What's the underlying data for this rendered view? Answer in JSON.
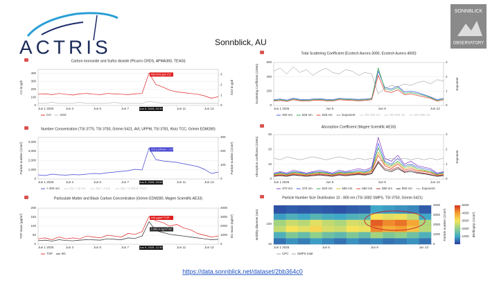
{
  "header": {
    "logo_text": "ACTRIS",
    "title": "Sonnblick, AU",
    "observatory_top": "SONNBLICK",
    "observatory_bottom": "OBSERVATORY"
  },
  "footer": {
    "link": "https://data.sonnblick.net/dataset/2bb364c0"
  },
  "chart_data": [
    {
      "type": "line",
      "title": "Carbon monoxide and Sulfur dioxide (Picarro CRDS, APMA360, TEI43i)",
      "y_label": "CO in ppb",
      "y2_label": "SO2 in ppb",
      "x": [
        1,
        1.5,
        2,
        2.5,
        3,
        3.5,
        4,
        4.5,
        5,
        5.5,
        6,
        6.5,
        7,
        7.5,
        8,
        8.5,
        9,
        9.5,
        10,
        10.5,
        11,
        11.5,
        12,
        12.5,
        13,
        13.5,
        14
      ],
      "xlim": [
        1,
        14
      ],
      "xticks": [
        {
          "value": 1,
          "label": "Jun 1 2025"
        },
        {
          "value": 3,
          "label": "Jun 3"
        },
        {
          "value": 5,
          "label": "Jun 5"
        },
        {
          "value": 7,
          "label": "Jun 7"
        },
        {
          "value": 11,
          "label": "Jun 11"
        },
        {
          "value": 13,
          "label": "Jun 13"
        }
      ],
      "ylim": [
        0,
        450
      ],
      "yticks": [
        0,
        100,
        200,
        300,
        400
      ],
      "y2lim": [
        0,
        3.5
      ],
      "y2ticks": [
        0,
        1,
        2,
        3
      ],
      "grid": true,
      "series": [
        {
          "name": "CO",
          "color": "#e02020",
          "values": [
            140,
            145,
            135,
            150,
            140,
            130,
            145,
            150,
            140,
            135,
            150,
            145,
            140,
            135,
            145,
            150,
            403,
            260,
            230,
            190,
            170,
            160,
            150,
            140,
            120,
            90,
            110
          ]
        },
        {
          "name": "SO2",
          "color": "#bbbbbb",
          "axis": "y2",
          "values": [
            0.2,
            0.2,
            0.3,
            0.2,
            0.2,
            0.2,
            0.3,
            0.2,
            0.2,
            0.2,
            0.2,
            0.3,
            0.2,
            0.2,
            0.2,
            0.2,
            0.4,
            0.3,
            0.2,
            0.2,
            0.2,
            0.2,
            0.2,
            0.2,
            0.2,
            0.2,
            0.2
          ]
        }
      ],
      "annotations": [
        "403.003 ppb CO"
      ],
      "hover_label": "Jun 9, 2025, 02:30"
    },
    {
      "type": "line",
      "title": "Number Concentration (TSI 3775, TSI 3750, Grimm 5421, AVL UFPM, TSI 3781, Kloiz TCC, Grimm EDM280)",
      "y_label": "Particle number (1/cm³)",
      "y2_label": "Particle number (1/cm³)",
      "x": [
        1,
        1.5,
        2,
        2.5,
        3,
        3.5,
        4,
        4.5,
        5,
        5.5,
        6,
        6.5,
        7,
        7.5,
        8,
        8.5,
        9,
        9.5,
        10,
        10.5,
        11,
        11.5,
        12,
        12.5,
        13,
        13.5,
        14
      ],
      "xlim": [
        1,
        14
      ],
      "xticks": [
        {
          "value": 1,
          "label": "Jun 1 2025"
        },
        {
          "value": 3,
          "label": "Jun 3"
        },
        {
          "value": 5,
          "label": "Jun 5"
        },
        {
          "value": 7,
          "label": "Jun 7"
        },
        {
          "value": 11,
          "label": "Jun 11"
        },
        {
          "value": 13,
          "label": "Jun 13"
        }
      ],
      "ylim": [
        0,
        4500
      ],
      "yticks": [
        0,
        {
          "value": 1000,
          "label": "1,000"
        },
        {
          "value": 2000,
          "label": "2,000"
        },
        {
          "value": 3000,
          "label": "3,000"
        },
        {
          "value": 4000,
          "label": "4,000"
        }
      ],
      "y2lim": [
        0,
        300
      ],
      "y2ticks": [
        0,
        100,
        200,
        300
      ],
      "grid": true,
      "series": [
        {
          "name": "> 300 nm",
          "color": "#4040d0",
          "axis": "y2",
          "values": [
            30,
            25,
            35,
            30,
            28,
            32,
            30,
            35,
            40,
            38,
            45,
            50,
            55,
            60,
            70,
            65,
            223,
            140,
            130,
            125,
            120,
            110,
            100,
            90,
            70,
            40,
            50
          ]
        }
      ],
      "legend_hidden": [
        "Dp > 10 nm",
        "Dp > 4 nm",
        "Dp > 4 (Kloiz TCC)"
      ],
      "annotations": [
        "223 particles / cm³ > 300 nm"
      ],
      "hover_label": "Jun 9, 2025, 03:00"
    },
    {
      "type": "line",
      "title": "Particulate Matter and Black Carbon Concentration (Grimm EDM280, Magee Scientific AE33)",
      "y_label": "TSP mass (µg/m³)",
      "y2_label": "BC mass (ng/m³)",
      "x": [
        1,
        1.5,
        2,
        2.5,
        3,
        3.5,
        4,
        4.5,
        5,
        5.5,
        6,
        6.5,
        7,
        7.5,
        8,
        8.5,
        9,
        9.5,
        10,
        10.5,
        11,
        11.5,
        12,
        12.5,
        13,
        13.5,
        14
      ],
      "xlim": [
        1,
        14
      ],
      "xticks": [
        {
          "value": 1,
          "label": "Jun 1 2025"
        },
        {
          "value": 3,
          "label": "Jun 3"
        },
        {
          "value": 5,
          "label": "Jun 5"
        },
        {
          "value": 7,
          "label": "Jun 7"
        },
        {
          "value": 11,
          "label": "Jun 11"
        },
        {
          "value": 13,
          "label": "Jun 13"
        }
      ],
      "ylim": [
        0,
        200
      ],
      "yticks": [
        0,
        50,
        100,
        150,
        200
      ],
      "y2lim": [
        0,
        4000
      ],
      "y2ticks": [
        0,
        1000,
        2000,
        3000,
        4000
      ],
      "grid": true,
      "series": [
        {
          "name": "TSP",
          "color": "#e02020",
          "values": [
            30,
            35,
            25,
            40,
            30,
            35,
            30,
            45,
            40,
            35,
            50,
            45,
            40,
            60,
            55,
            70,
            154,
            130,
            120,
            100,
            110,
            90,
            80,
            60,
            50,
            40,
            45
          ]
        },
        {
          "name": "BC",
          "color": "#222222",
          "axis": "y2",
          "values": [
            400,
            450,
            350,
            500,
            420,
            380,
            450,
            500,
            480,
            450,
            600,
            550,
            500,
            700,
            650,
            900,
            2499.3,
            1500,
            1300,
            1100,
            1000,
            900,
            800,
            700,
            600,
            500,
            550
          ]
        }
      ],
      "annotations": [
        "154 µg/m³ TSP",
        "2,499.3 ng/m³ BC"
      ],
      "hover_label": "Jun 9, 2025, 12:30"
    },
    {
      "type": "line",
      "title": "Total Scattering Coefficient (Ecotech Aurora 3000, Ecotech Aurora 4000)",
      "y_label": "Scattering Coefficient (1/Mm)",
      "y2_label": "Exponent",
      "x": [
        1,
        1.5,
        2,
        2.5,
        3,
        3.5,
        4,
        4.5,
        5,
        5.5,
        6,
        6.5,
        7,
        7.5,
        8,
        8.5,
        9,
        9.5,
        10,
        10.5,
        11,
        11.5,
        12,
        12.5,
        13,
        13.5,
        14
      ],
      "xlim": [
        1,
        14
      ],
      "xticks": [
        {
          "value": 1,
          "label": "Jun 1 2025"
        },
        {
          "value": 5,
          "label": "Jun 5"
        },
        {
          "value": 9,
          "label": "Jun 9"
        },
        {
          "value": 13,
          "label": "Jun 13"
        }
      ],
      "ylim": [
        0,
        600
      ],
      "yticks": [
        0,
        200,
        400,
        600
      ],
      "y2lim": [
        0,
        3
      ],
      "y2ticks": [
        0,
        1,
        2,
        3
      ],
      "grid": true,
      "series": [
        {
          "name": "450 nm",
          "color": "#3050e0",
          "values": [
            80,
            90,
            75,
            100,
            85,
            80,
            90,
            95,
            85,
            80,
            100,
            95,
            90,
            85,
            90,
            100,
            480,
            250,
            230,
            270,
            190,
            200,
            180,
            150,
            120,
            80,
            100
          ]
        },
        {
          "name": "525 nm",
          "color": "#20a040",
          "values": [
            70,
            80,
            65,
            90,
            75,
            70,
            80,
            85,
            75,
            70,
            90,
            85,
            80,
            75,
            80,
            90,
            520,
            230,
            210,
            250,
            170,
            180,
            160,
            140,
            110,
            70,
            90
          ]
        },
        {
          "name": "635 nm",
          "color": "#e03020",
          "values": [
            60,
            70,
            55,
            80,
            65,
            60,
            70,
            75,
            65,
            60,
            80,
            75,
            70,
            65,
            70,
            80,
            420,
            200,
            180,
            220,
            150,
            160,
            140,
            120,
            100,
            60,
            80
          ]
        },
        {
          "name": "Exponent",
          "color": "#888888",
          "axis": "y2",
          "values": [
            2.4,
            2.6,
            2.2,
            2.7,
            2.3,
            2.5,
            2.1,
            2.4,
            2.6,
            2.3,
            2.2,
            2.5,
            2.4,
            2.1,
            2.3,
            2.2,
            0.8,
            1.2,
            1.4,
            1.3,
            1.5,
            1.4,
            1.6,
            1.7,
            1.5,
            1.8,
            1.7
          ]
        }
      ],
      "legend_hidden": [
        "BS 450 nm",
        "BS 525 nm",
        "BS 635 nm"
      ]
    },
    {
      "type": "line",
      "title": "Absorption Coefficient (Magee Scientific AE33)",
      "y_label": "Absorption coefficient (1/Mm)",
      "y2_label": "Exponent",
      "x": [
        1,
        1.5,
        2,
        2.5,
        3,
        3.5,
        4,
        4.5,
        5,
        5.5,
        6,
        6.5,
        7,
        7.5,
        8,
        8.5,
        9,
        9.5,
        10,
        10.5,
        11,
        11.5,
        12,
        12.5,
        13,
        13.5,
        14
      ],
      "xlim": [
        1,
        14
      ],
      "xticks": [
        {
          "value": 1,
          "label": "Jun 1 2025"
        },
        {
          "value": 5,
          "label": "Jun 5"
        },
        {
          "value": 9,
          "label": "Jun 9"
        },
        {
          "value": 13,
          "label": "Jun 13"
        }
      ],
      "ylim": [
        0,
        30
      ],
      "yticks": [
        0,
        10,
        20,
        30
      ],
      "y2lim": [
        0,
        3
      ],
      "y2ticks": [
        0,
        1,
        2,
        3
      ],
      "grid": true,
      "series": [
        {
          "name": "370 nm",
          "color": "#7b2fbf",
          "values": [
            4,
            5,
            4,
            6,
            5,
            4,
            5,
            6,
            5,
            4,
            6,
            5,
            6,
            7,
            6,
            8,
            28,
            14,
            12,
            16,
            10,
            12,
            9,
            8,
            7,
            4,
            5
          ]
        },
        {
          "name": "470 nm",
          "color": "#3050e0",
          "values": [
            3.5,
            4.5,
            3.5,
            5,
            4.5,
            3.5,
            4.5,
            5,
            4.5,
            3.5,
            5,
            4.5,
            5,
            6,
            5,
            7,
            24,
            12,
            10,
            14,
            9,
            10,
            8,
            7,
            6,
            3.5,
            4.5
          ]
        },
        {
          "name": "520 nm",
          "color": "#20a040",
          "values": [
            3,
            4,
            3,
            4.5,
            4,
            3,
            4,
            4.5,
            4,
            3,
            4.5,
            4,
            4.5,
            5,
            4.5,
            6,
            21,
            11,
            9,
            12,
            8,
            9,
            7,
            6,
            5,
            3,
            4
          ]
        },
        {
          "name": "590 nm",
          "color": "#d0b000",
          "values": [
            2.8,
            3.5,
            2.8,
            4,
            3.5,
            2.8,
            3.5,
            4,
            3.5,
            2.8,
            4,
            3.5,
            4,
            4.5,
            4,
            5.5,
            18,
            10,
            8,
            11,
            7,
            8,
            6,
            5.5,
            4.5,
            2.8,
            3.5
          ]
        },
        {
          "name": "660 nm",
          "color": "#e03020",
          "values": [
            2.5,
            3,
            2.5,
            3.5,
            3,
            2.5,
            3,
            3.5,
            3,
            2.5,
            3.5,
            3,
            3.5,
            4,
            3.5,
            5,
            16,
            9,
            7,
            10,
            6,
            7,
            5.5,
            5,
            4,
            2.5,
            3
          ]
        },
        {
          "name": "880 nm",
          "color": "#a02020",
          "values": [
            2,
            2.5,
            2,
            3,
            2.5,
            2,
            2.5,
            3,
            2.5,
            2,
            3,
            2.5,
            3,
            3.5,
            3,
            4,
            12,
            7,
            6,
            8,
            5,
            6,
            4.5,
            4,
            3,
            2,
            2.5
          ]
        },
        {
          "name": "950 nm",
          "color": "#222222",
          "values": [
            1.8,
            2.2,
            1.8,
            2.7,
            2.2,
            1.8,
            2.2,
            2.7,
            2.2,
            1.8,
            2.7,
            2.2,
            2.7,
            3,
            2.7,
            3.5,
            11,
            6,
            5,
            7,
            4.5,
            5,
            4,
            3.5,
            2.7,
            1.8,
            2.2
          ]
        },
        {
          "name": "Exponent",
          "color": "#888888",
          "axis": "y2",
          "values": [
            1.4,
            1.3,
            1.5,
            1.4,
            1.3,
            1.4,
            1.5,
            1.4,
            1.3,
            1.4,
            1.5,
            1.4,
            1.3,
            1.4,
            1.3,
            1.4,
            1.2,
            1.3,
            1.4,
            1.3,
            1.4,
            1.3,
            1.4,
            1.3,
            1.4,
            1.3,
            1.4
          ]
        }
      ]
    },
    {
      "type": "heatmap",
      "title": "Particle Number Size Distribution 10 - 800 nm (TSI 3082 SMPS, TSI 3750, Grimm 5421)",
      "y_label": "Mobility diameter (nm)",
      "y2_label": "Particle number (1/cm³)",
      "colorbar_label": "dN/dlogDp (1/cm³)",
      "x_bins": [
        1,
        2,
        3,
        4,
        5,
        6,
        7,
        8,
        9,
        10,
        11,
        12,
        13,
        14
      ],
      "y_bins": [
        10,
        20,
        40,
        80,
        160,
        320,
        800
      ],
      "log_y": true,
      "xlim": [
        1,
        14
      ],
      "xticks": [
        {
          "value": 1,
          "label": "Jun 1 2025"
        },
        {
          "value": 5,
          "label": "Jun 5"
        },
        {
          "value": 9,
          "label": "Jun 9"
        },
        {
          "value": 13,
          "label": "Jun 13"
        }
      ],
      "ylim": [
        10,
        800
      ],
      "yticks": [
        10,
        100
      ],
      "y2lim": [
        0,
        4000
      ],
      "y2ticks": [
        0,
        1000,
        2000,
        3000,
        4000
      ],
      "z": [
        [
          500,
          800,
          600,
          900,
          700,
          500,
          800,
          600,
          700,
          500,
          600,
          800,
          500
        ],
        [
          1200,
          1800,
          1500,
          2000,
          1600,
          1400,
          1800,
          1500,
          2200,
          1800,
          2000,
          1600,
          1200
        ],
        [
          2500,
          3000,
          2800,
          3200,
          2700,
          2600,
          3000,
          2900,
          4200,
          3800,
          4000,
          3500,
          2400
        ],
        [
          2200,
          2600,
          2400,
          2800,
          2500,
          2300,
          2700,
          2600,
          4600,
          4200,
          4400,
          3900,
          2300
        ],
        [
          900,
          1200,
          1000,
          1300,
          1100,
          1000,
          1200,
          1300,
          3000,
          2800,
          2900,
          2500,
          1000
        ],
        [
          200,
          300,
          250,
          300,
          250,
          200,
          300,
          350,
          1000,
          900,
          800,
          700,
          300
        ]
      ],
      "zlim": [
        0,
        5000
      ],
      "zticks": [
        1000,
        2000,
        3000,
        4000,
        5000
      ],
      "colorscale": [
        "#2a3c9c",
        "#3fa8c8",
        "#8fd08a",
        "#f5e35a",
        "#f5a030",
        "#d7301f"
      ],
      "legend": [
        "CPC",
        "SMPS total"
      ]
    }
  ]
}
